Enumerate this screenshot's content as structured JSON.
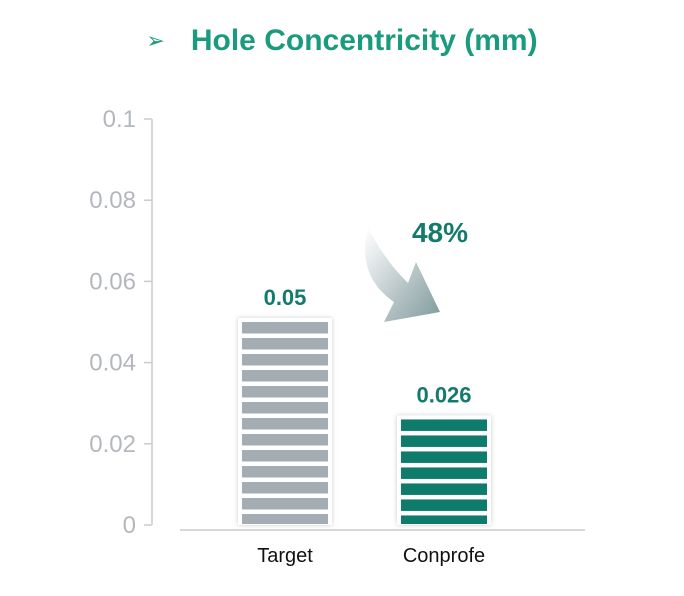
{
  "title": {
    "bullet_icon": "arrow-bullet-icon",
    "symbol": "➢",
    "text": "Hole Concentricity (mm)"
  },
  "chart_data": {
    "type": "bar",
    "categories": [
      "Target",
      "Conprofe"
    ],
    "values": [
      0.05,
      0.026
    ],
    "value_labels": [
      "0.05",
      "0.026"
    ],
    "ylim": [
      0,
      0.1
    ],
    "yticks": [
      0,
      0.02,
      0.04,
      0.06,
      0.08,
      0.1
    ],
    "ytick_labels": [
      "0",
      "0.02",
      "0.04",
      "0.06",
      "0.08",
      "0.1"
    ],
    "grid": false,
    "annotation": {
      "text": "48%",
      "icon": "curved-down-arrow-icon"
    },
    "colors": {
      "Target": "#a4adb4",
      "Conprofe": "#0f7b6d",
      "axis": "#c8ccd0",
      "title": "#1a9b7e",
      "value": "#137a6e"
    }
  }
}
